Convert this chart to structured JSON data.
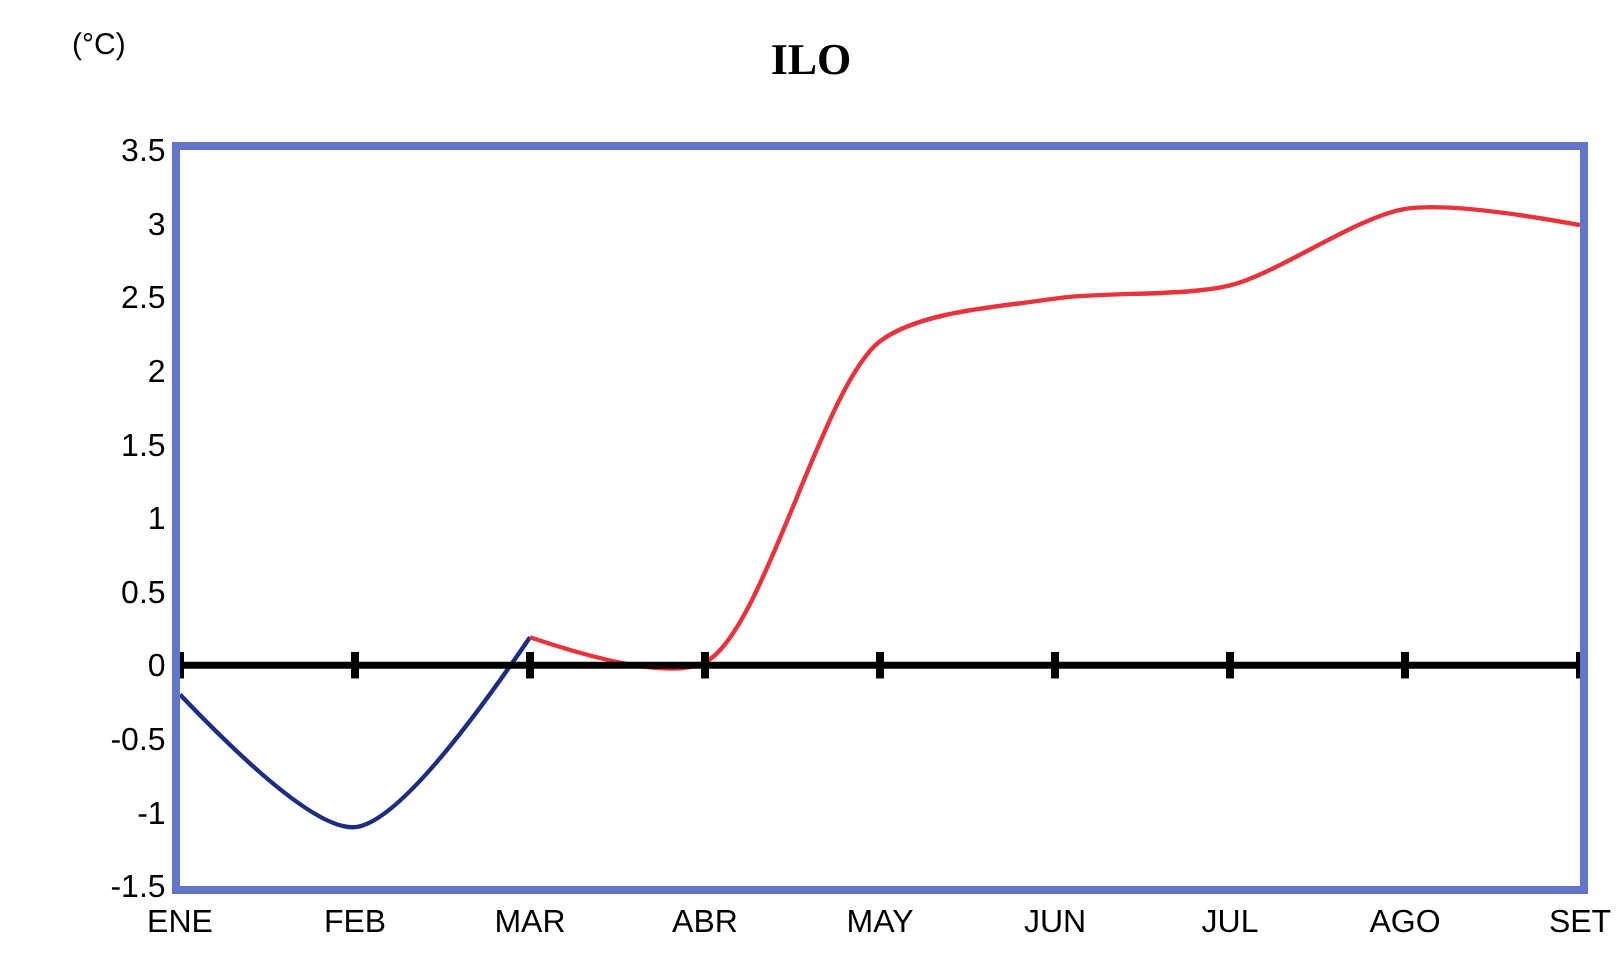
{
  "chart_data": {
    "type": "line",
    "title": "ILO",
    "ylabel": "(°C)",
    "categories": [
      "ENE",
      "FEB",
      "MAR",
      "ABR",
      "MAY",
      "JUN",
      "JUL",
      "AGO",
      "SET"
    ],
    "ylim": [
      -1.5,
      3.5
    ],
    "yticks": [
      -1.5,
      -1,
      -0.5,
      0,
      0.5,
      1,
      1.5,
      2,
      2.5,
      3,
      3.5
    ],
    "series": [
      {
        "color": "#1f2d80",
        "values": [
          -0.2,
          -1.1,
          0.19,
          null,
          null,
          null,
          null,
          null,
          null
        ]
      },
      {
        "color": "#e8323c",
        "values": [
          null,
          null,
          0.19,
          0.02,
          2.2,
          2.49,
          2.58,
          3.1,
          2.99
        ]
      }
    ],
    "ref_lines": [
      {
        "axis": "y",
        "value": 0,
        "color": "#000000"
      }
    ],
    "marker": "none",
    "line_style": "solid"
  }
}
